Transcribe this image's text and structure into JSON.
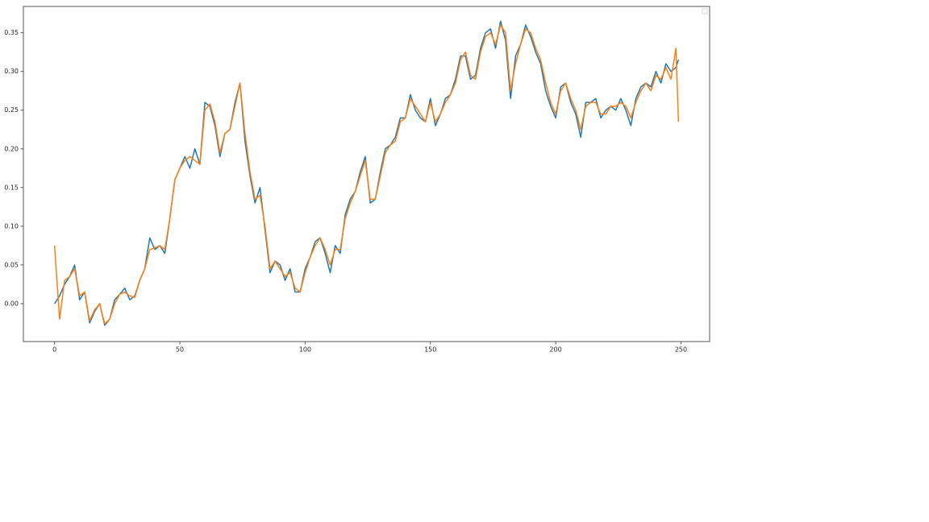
{
  "chart_data": {
    "type": "line",
    "x": [
      0,
      2,
      4,
      6,
      8,
      10,
      12,
      14,
      16,
      18,
      20,
      22,
      24,
      26,
      28,
      30,
      32,
      34,
      36,
      38,
      40,
      42,
      44,
      46,
      48,
      50,
      52,
      54,
      56,
      58,
      60,
      62,
      64,
      66,
      68,
      70,
      72,
      74,
      76,
      78,
      80,
      82,
      84,
      86,
      88,
      90,
      92,
      94,
      96,
      98,
      100,
      102,
      104,
      106,
      108,
      110,
      112,
      114,
      116,
      118,
      120,
      122,
      124,
      126,
      128,
      130,
      132,
      134,
      136,
      138,
      140,
      142,
      144,
      146,
      148,
      150,
      152,
      154,
      156,
      158,
      160,
      162,
      164,
      166,
      168,
      170,
      172,
      174,
      176,
      178,
      180,
      182,
      184,
      186,
      188,
      190,
      192,
      194,
      196,
      198,
      200,
      202,
      204,
      206,
      208,
      210,
      212,
      214,
      216,
      218,
      220,
      222,
      224,
      226,
      228,
      230,
      232,
      234,
      236,
      238,
      240,
      242,
      244,
      246,
      248,
      249
    ],
    "series": [
      {
        "color": "#1f77b4",
        "values": [
          0.0,
          0.01,
          0.025,
          0.035,
          0.05,
          0.005,
          0.015,
          -0.025,
          -0.01,
          0.0,
          -0.028,
          -0.02,
          0.005,
          0.012,
          0.02,
          0.005,
          0.01,
          0.03,
          0.045,
          0.085,
          0.07,
          0.075,
          0.065,
          0.11,
          0.16,
          0.175,
          0.19,
          0.175,
          0.2,
          0.18,
          0.26,
          0.255,
          0.23,
          0.19,
          0.22,
          0.225,
          0.26,
          0.285,
          0.21,
          0.165,
          0.13,
          0.15,
          0.095,
          0.04,
          0.055,
          0.05,
          0.03,
          0.045,
          0.015,
          0.015,
          0.045,
          0.06,
          0.08,
          0.085,
          0.065,
          0.04,
          0.075,
          0.065,
          0.115,
          0.135,
          0.145,
          0.17,
          0.19,
          0.13,
          0.135,
          0.17,
          0.2,
          0.205,
          0.215,
          0.24,
          0.24,
          0.27,
          0.25,
          0.24,
          0.235,
          0.265,
          0.23,
          0.245,
          0.265,
          0.27,
          0.29,
          0.32,
          0.32,
          0.29,
          0.295,
          0.33,
          0.35,
          0.355,
          0.33,
          0.365,
          0.34,
          0.265,
          0.32,
          0.335,
          0.36,
          0.345,
          0.325,
          0.31,
          0.275,
          0.255,
          0.24,
          0.28,
          0.285,
          0.26,
          0.245,
          0.215,
          0.26,
          0.26,
          0.265,
          0.24,
          0.25,
          0.255,
          0.25,
          0.265,
          0.25,
          0.23,
          0.265,
          0.28,
          0.285,
          0.28,
          0.3,
          0.285,
          0.31,
          0.3,
          0.305,
          0.315
        ]
      },
      {
        "color": "#ff7f0e",
        "values": [
          0.075,
          -0.02,
          0.03,
          0.035,
          0.045,
          0.01,
          0.015,
          -0.022,
          -0.008,
          0.0,
          -0.026,
          -0.02,
          0.0,
          0.012,
          0.015,
          0.01,
          0.008,
          0.03,
          0.045,
          0.07,
          0.072,
          0.075,
          0.07,
          0.11,
          0.16,
          0.175,
          0.185,
          0.19,
          0.185,
          0.18,
          0.25,
          0.258,
          0.235,
          0.195,
          0.22,
          0.225,
          0.255,
          0.285,
          0.22,
          0.17,
          0.135,
          0.14,
          0.1,
          0.045,
          0.055,
          0.045,
          0.035,
          0.04,
          0.02,
          0.015,
          0.04,
          0.06,
          0.075,
          0.085,
          0.07,
          0.05,
          0.07,
          0.07,
          0.11,
          0.13,
          0.145,
          0.165,
          0.185,
          0.135,
          0.135,
          0.165,
          0.195,
          0.205,
          0.21,
          0.235,
          0.24,
          0.265,
          0.255,
          0.245,
          0.235,
          0.26,
          0.235,
          0.245,
          0.26,
          0.27,
          0.285,
          0.315,
          0.325,
          0.295,
          0.29,
          0.325,
          0.345,
          0.35,
          0.335,
          0.36,
          0.35,
          0.275,
          0.31,
          0.335,
          0.355,
          0.35,
          0.33,
          0.315,
          0.285,
          0.26,
          0.245,
          0.275,
          0.285,
          0.265,
          0.25,
          0.225,
          0.255,
          0.26,
          0.26,
          0.245,
          0.245,
          0.255,
          0.255,
          0.26,
          0.255,
          0.24,
          0.26,
          0.275,
          0.285,
          0.275,
          0.295,
          0.29,
          0.305,
          0.29,
          0.33,
          0.235
        ]
      }
    ],
    "xlim": [
      -12.45,
      261.45
    ],
    "ylim": [
      -0.049,
      0.384
    ],
    "xticks": [
      0,
      50,
      100,
      150,
      200,
      250
    ],
    "yticks": [
      {
        "value": 0,
        "label": "0.00"
      },
      {
        "value": 0.05,
        "label": "0.05"
      },
      {
        "value": 0.1,
        "label": "0.10"
      },
      {
        "value": 0.15,
        "label": "0.15"
      },
      {
        "value": 0.2,
        "label": "0.20"
      },
      {
        "value": 0.25,
        "label": "0.25"
      },
      {
        "value": 0.3,
        "label": "0.30"
      },
      {
        "value": 0.35,
        "label": "0.35"
      }
    ]
  }
}
